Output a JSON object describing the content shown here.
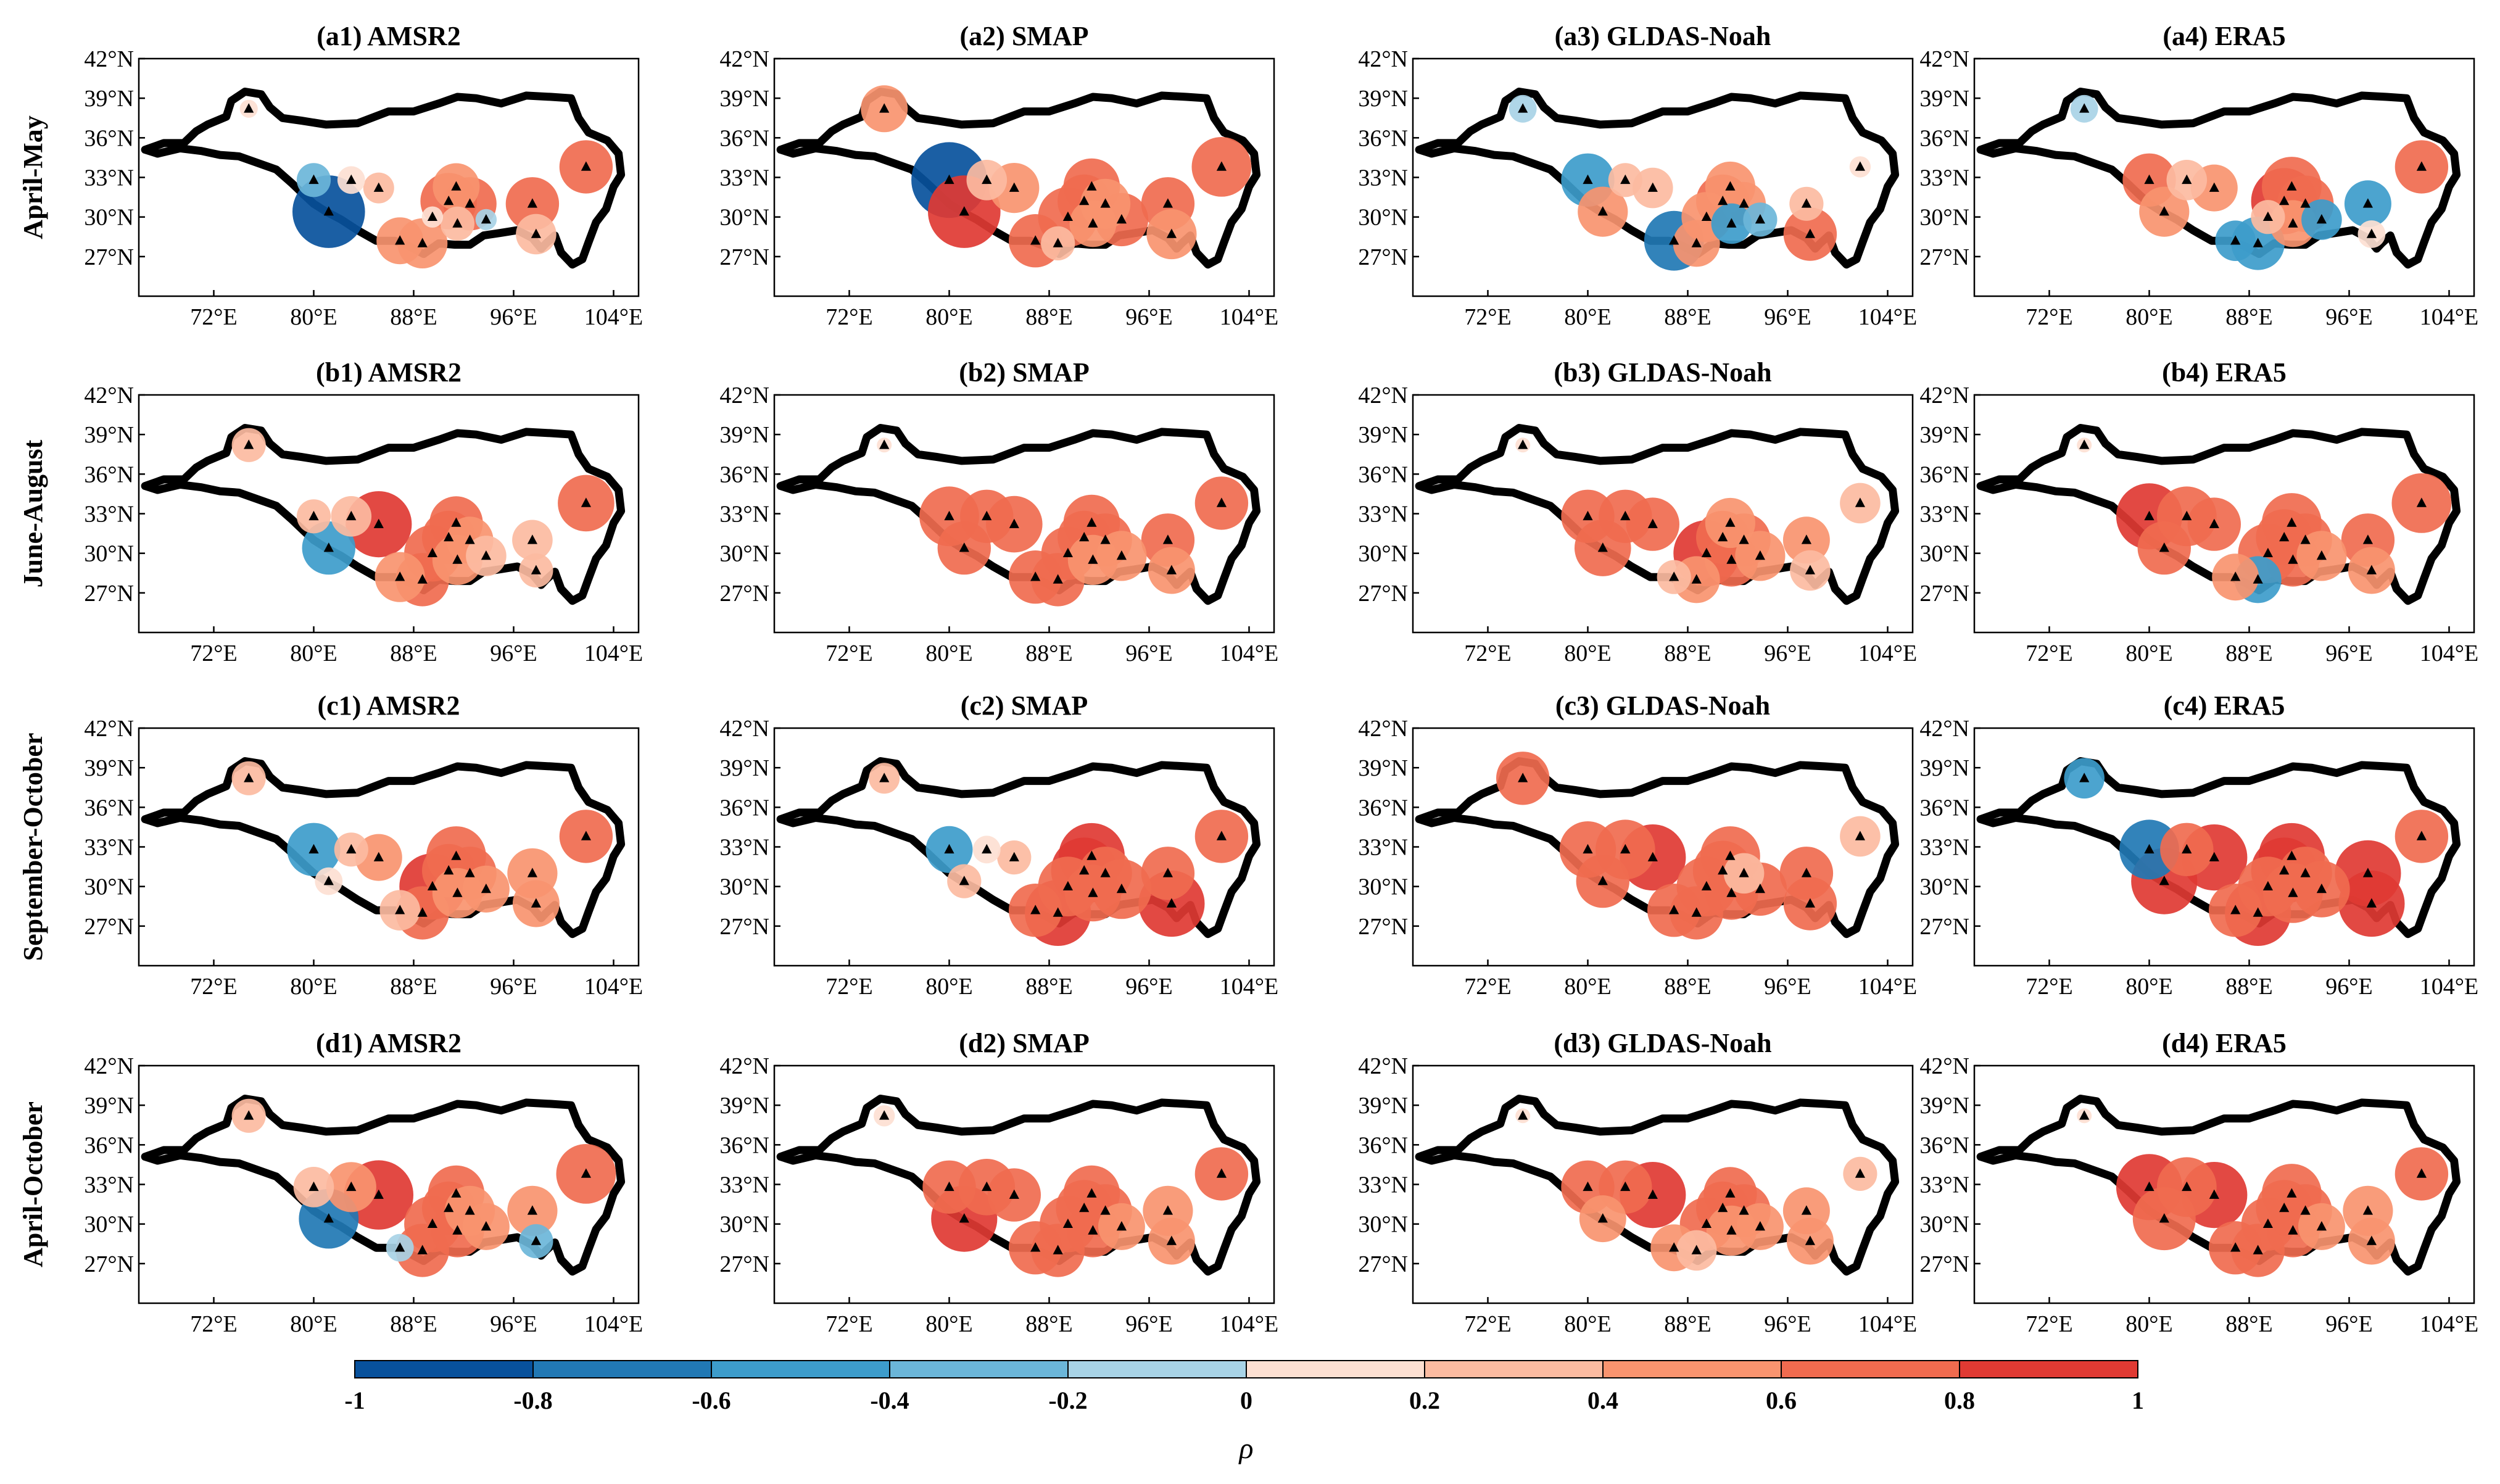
{
  "panels": [
    {
      "title": "(a1) AMSR2",
      "row": 0,
      "col": 0
    },
    {
      "title": "(a2) SMAP",
      "row": 0,
      "col": 1
    },
    {
      "title": "(a3) GLDAS-Noah",
      "row": 0,
      "col": 2
    },
    {
      "title": "(a4) ERA5",
      "row": 0,
      "col": 3
    },
    {
      "title": "(b1) AMSR2",
      "row": 1,
      "col": 0
    },
    {
      "title": "(b2) SMAP",
      "row": 1,
      "col": 1
    },
    {
      "title": "(b3) GLDAS-Noah",
      "row": 1,
      "col": 2
    },
    {
      "title": "(b4) ERA5",
      "row": 1,
      "col": 3
    },
    {
      "title": "(c1) AMSR2",
      "row": 2,
      "col": 0
    },
    {
      "title": "(c2) SMAP",
      "row": 2,
      "col": 1
    },
    {
      "title": "(c3) GLDAS-Noah",
      "row": 2,
      "col": 2
    },
    {
      "title": "(c4) ERA5",
      "row": 2,
      "col": 3
    },
    {
      "title": "(d1) AMSR2",
      "row": 3,
      "col": 0
    },
    {
      "title": "(d2) SMAP",
      "row": 3,
      "col": 1
    },
    {
      "title": "(d3) GLDAS-Noah",
      "row": 3,
      "col": 2
    },
    {
      "title": "(d4) ERA5",
      "row": 3,
      "col": 3
    }
  ],
  "row_labels": [
    "April-May",
    "June-August",
    "September-October",
    "April-October"
  ],
  "lat_ticks": [
    "42°N",
    "39°N",
    "36°N",
    "33°N",
    "30°N",
    "27°N"
  ],
  "lon_ticks": [
    "72°E",
    "80°E",
    "88°E",
    "96°E",
    "104°E"
  ],
  "colorbar": {
    "title": "ρ",
    "tick_labels": [
      "-1",
      "-0.8",
      "-0.6",
      "-0.4",
      "-0.2",
      "0",
      "0.2",
      "0.4",
      "0.6",
      "0.8",
      "1"
    ],
    "colors": [
      "#08519c",
      "#2178b4",
      "#3d9ccb",
      "#6bb6d9",
      "#a8d3e6",
      "#fde0d2",
      "#fcbba1",
      "#f9946f",
      "#f06b4f",
      "#e03a33"
    ]
  },
  "chart_data": {
    "type": "map",
    "lat_range": [
      24,
      42
    ],
    "lon_range": [
      66,
      106
    ],
    "rho_range": [
      -1,
      1
    ],
    "stations": [
      {
        "lon": 74.8,
        "lat": 38.2
      },
      {
        "lon": 80.0,
        "lat": 32.8
      },
      {
        "lon": 81.2,
        "lat": 30.4
      },
      {
        "lon": 83.0,
        "lat": 32.8
      },
      {
        "lon": 85.2,
        "lat": 32.2
      },
      {
        "lon": 86.9,
        "lat": 28.2
      },
      {
        "lon": 88.7,
        "lat": 28.0
      },
      {
        "lon": 89.5,
        "lat": 30.0
      },
      {
        "lon": 90.8,
        "lat": 31.2
      },
      {
        "lon": 91.4,
        "lat": 32.3
      },
      {
        "lon": 91.5,
        "lat": 29.5
      },
      {
        "lon": 92.5,
        "lat": 31.0
      },
      {
        "lon": 93.8,
        "lat": 29.8
      },
      {
        "lon": 97.5,
        "lat": 31.0
      },
      {
        "lon": 97.8,
        "lat": 28.7
      },
      {
        "lon": 101.8,
        "lat": 33.8
      }
    ],
    "rho": [
      [
        0.05,
        -0.3,
        -0.9,
        0.2,
        0.25,
        0.5,
        0.55,
        0.1,
        0.65,
        0.5,
        0.3,
        0.6,
        -0.1,
        0.6,
        0.4,
        0.6
      ],
      [
        0.5,
        -0.95,
        0.9,
        0.4,
        0.55,
        0.6,
        0.3,
        0.7,
        0.6,
        0.65,
        0.5,
        0.55,
        0.6,
        0.6,
        0.55,
        0.7
      ],
      [
        -0.2,
        -0.6,
        0.55,
        0.3,
        0.4,
        -0.7,
        0.5,
        0.55,
        0.6,
        0.55,
        -0.4,
        0.45,
        -0.3,
        0.3,
        0.6,
        0.1
      ],
      [
        -0.2,
        0.6,
        0.55,
        0.4,
        0.5,
        -0.4,
        -0.6,
        0.3,
        0.8,
        0.7,
        0.5,
        0.65,
        -0.4,
        -0.5,
        0.2,
        0.6
      ],
      [
        0.3,
        0.3,
        -0.6,
        0.4,
        0.8,
        0.55,
        0.6,
        0.65,
        0.6,
        0.6,
        0.55,
        0.5,
        0.4,
        0.4,
        0.3,
        0.65
      ],
      [
        0.0,
        0.7,
        0.6,
        0.6,
        0.65,
        0.6,
        0.6,
        0.6,
        0.6,
        0.65,
        0.55,
        0.6,
        0.55,
        0.6,
        0.5,
        0.6
      ],
      [
        0.0,
        0.6,
        0.65,
        0.6,
        0.6,
        0.3,
        0.5,
        0.8,
        0.6,
        0.55,
        0.6,
        0.6,
        0.55,
        0.5,
        0.4,
        0.4
      ],
      [
        0.0,
        0.8,
        0.6,
        0.7,
        0.6,
        0.5,
        -0.5,
        0.7,
        0.65,
        0.7,
        0.6,
        0.6,
        0.55,
        0.6,
        0.5,
        0.7
      ],
      [
        0.3,
        -0.6,
        0.2,
        0.3,
        0.5,
        0.4,
        0.6,
        0.8,
        0.6,
        0.7,
        0.55,
        0.6,
        0.5,
        0.55,
        0.5,
        0.6
      ],
      [
        0.25,
        -0.5,
        0.3,
        0.2,
        0.3,
        0.6,
        0.8,
        0.7,
        0.8,
        0.8,
        0.65,
        0.6,
        0.7,
        0.6,
        0.8,
        0.6
      ],
      [
        0.6,
        0.65,
        0.6,
        0.7,
        0.8,
        0.6,
        0.6,
        0.7,
        0.7,
        0.7,
        0.6,
        0.4,
        0.6,
        0.6,
        0.6,
        0.4
      ],
      [
        -0.4,
        -0.7,
        0.8,
        0.6,
        0.8,
        0.6,
        0.8,
        0.7,
        0.8,
        0.8,
        0.7,
        0.6,
        0.65,
        0.8,
        0.8,
        0.6
      ],
      [
        0.3,
        0.4,
        -0.7,
        0.55,
        0.85,
        -0.2,
        0.6,
        0.65,
        0.6,
        0.65,
        0.6,
        0.55,
        0.5,
        0.55,
        -0.3,
        0.7
      ],
      [
        0.1,
        0.6,
        0.8,
        0.65,
        0.6,
        0.6,
        0.6,
        0.65,
        0.65,
        0.65,
        0.6,
        0.6,
        0.5,
        0.55,
        0.5,
        0.6
      ],
      [
        0.0,
        0.6,
        0.5,
        0.6,
        0.8,
        0.5,
        0.4,
        0.6,
        0.6,
        0.6,
        0.55,
        0.6,
        0.5,
        0.5,
        0.5,
        0.3
      ],
      [
        0.0,
        0.8,
        0.75,
        0.7,
        0.8,
        0.6,
        0.6,
        0.6,
        0.65,
        0.7,
        0.6,
        0.6,
        0.5,
        0.55,
        0.5,
        0.6
      ]
    ]
  }
}
